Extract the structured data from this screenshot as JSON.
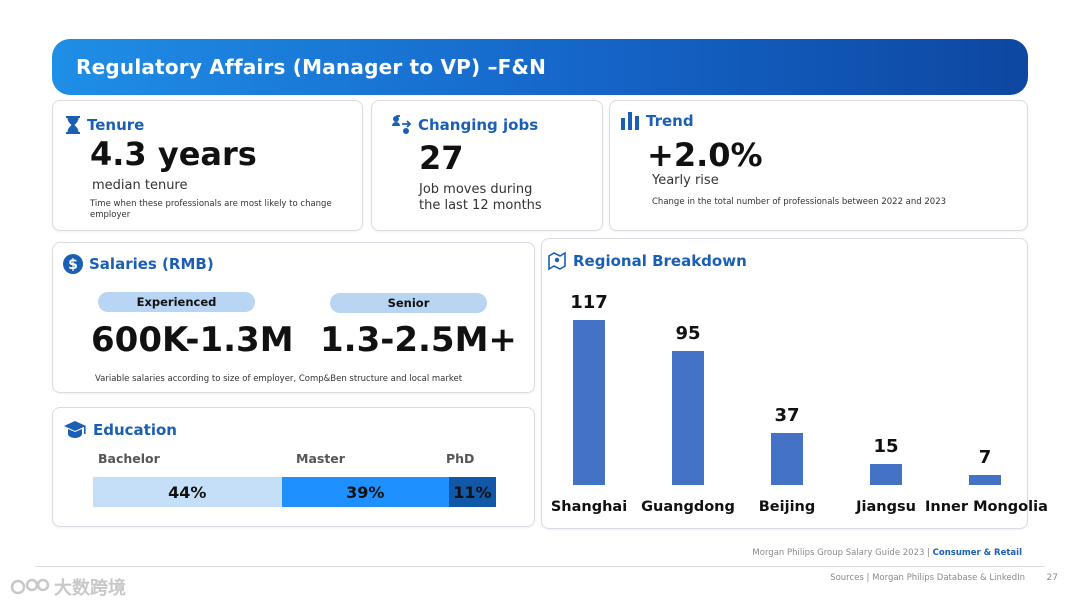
{
  "header": {
    "title": "Regulatory Affairs (Manager to VP) –F&N"
  },
  "tenure": {
    "title": "Tenure",
    "value": "4.3 years",
    "label": "median tenure",
    "note": "Time when these professionals are most likely to  change employer"
  },
  "changing_jobs": {
    "title": "Changing jobs",
    "value": "27",
    "label_line1": "Job moves during",
    "label_line2": "the last 12 months"
  },
  "trend": {
    "title": "Trend",
    "value": "+2.0%",
    "label": "Yearly rise",
    "note": "Change in the total number of professionals between 2022 and 2023"
  },
  "salaries": {
    "title": "Salaries (RMB)",
    "experienced_label": "Experienced",
    "experienced_value": "600K-1.3M",
    "senior_label": "Senior",
    "senior_value": "1.3-2.5M+",
    "note": "Variable salaries according to size of employer, Comp&Ben structure and local market"
  },
  "education": {
    "title": "Education",
    "segments": [
      {
        "label": "Bachelor",
        "display": "44%",
        "value": 44,
        "color": "#c5dff8"
      },
      {
        "label": "Master",
        "display": "39%",
        "value": 39,
        "color": "#1e90ff"
      },
      {
        "label": "PhD",
        "display": "11%",
        "value": 11,
        "color": "#1158a8"
      }
    ]
  },
  "regional": {
    "title": "Regional Breakdown"
  },
  "chart_data": {
    "type": "bar",
    "title": "Regional Breakdown",
    "categories": [
      "Shanghai",
      "Guangdong",
      "Beijing",
      "Jiangsu",
      "Inner Mongolia"
    ],
    "values": [
      117,
      95,
      37,
      15,
      7
    ],
    "xlabel": "",
    "ylabel": "",
    "ylim": [
      0,
      117
    ],
    "grid": false,
    "color": "#4472c4"
  },
  "footer": {
    "guide": "Morgan Philips Group Salary Guide 2023 |",
    "sector": "Consumer & Retail",
    "sources": "Sources | Morgan Philips Database & LinkedIn",
    "page": "27"
  },
  "watermark": {
    "text": "大数跨境"
  }
}
